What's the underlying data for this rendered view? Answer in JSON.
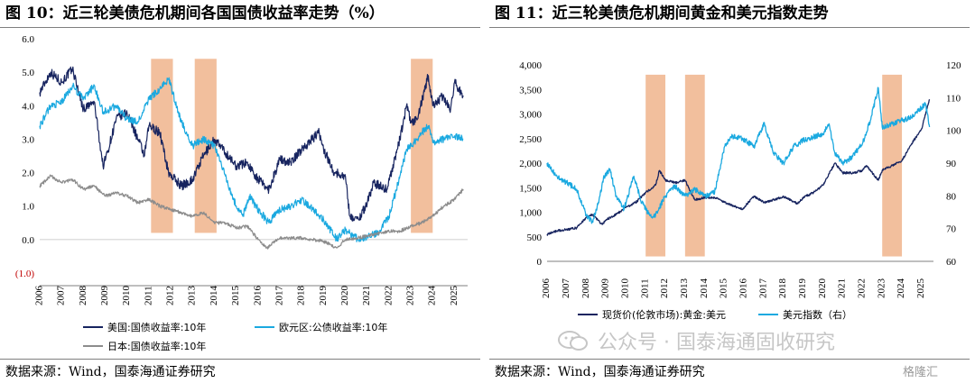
{
  "left": {
    "title": "图 10：近三轮美债危机期间各国国债收益率走势（%）",
    "source": "数据来源：Wind，国泰海通证券研究",
    "legend": [
      "美国:国债收益率:10年",
      "欧元区:公债收益率:10年",
      "日本:国债收益率:10年"
    ]
  },
  "right": {
    "title": "图 11：近三轮美债危机期间黄金和美元指数走势",
    "source": "数据来源：Wind，国泰海通证券研究",
    "legend": [
      "现货价(伦敦市场):黄金:美元",
      "美元指数（右）"
    ]
  },
  "watermark": {
    "text": "公众号 · 国泰海通固收研究"
  },
  "corner_logo": "格隆汇",
  "colors": {
    "us": "#17245f",
    "euro": "#1ba9e0",
    "japan": "#8c8c8c",
    "gold": "#17245f",
    "dxy": "#1ba9e0",
    "shade": "#f0b48c",
    "grid": "#d9d9d9"
  },
  "chart_data": [
    {
      "type": "line",
      "title": "",
      "xlabel": "",
      "ylabel": "",
      "ylim": [
        -1.0,
        6.0
      ],
      "xlim": [
        2006,
        2025.6
      ],
      "yticks": [
        -1.0,
        0.0,
        1.0,
        2.0,
        3.0,
        4.0,
        5.0,
        6.0
      ],
      "ytick_labels": [
        "(1.0)",
        "0.0",
        "1.0",
        "2.0",
        "3.0",
        "4.0",
        "5.0",
        "6.0"
      ],
      "xticks": [
        2006,
        2007,
        2008,
        2009,
        2010,
        2011,
        2012,
        2013,
        2014,
        2015,
        2016,
        2017,
        2018,
        2019,
        2020,
        2021,
        2022,
        2023,
        2024,
        2025
      ],
      "xtick_labels": [
        "2006",
        "2007",
        "2008",
        "2009",
        "2010",
        "2011",
        "2012",
        "2013",
        "2014",
        "2015",
        "2016",
        "2017",
        "2018",
        "2019",
        "2020",
        "2021",
        "2022",
        "2023",
        "2024",
        "2025"
      ],
      "shaded_ranges": [
        [
          2011.1,
          2012.1
        ],
        [
          2013.1,
          2014.1
        ],
        [
          2023.0,
          2024.0
        ]
      ],
      "legend_position": "bottom",
      "series": [
        {
          "name": "美国:国债收益率:10年",
          "x": [
            2006,
            2006.5,
            2007,
            2007.5,
            2008,
            2008.5,
            2008.9,
            2009.1,
            2009.5,
            2010,
            2010.5,
            2010.8,
            2011,
            2011.5,
            2011.9,
            2012.5,
            2013,
            2013.5,
            2014,
            2014.5,
            2015,
            2015.5,
            2016,
            2016.5,
            2017,
            2017.5,
            2018,
            2018.8,
            2019,
            2019.5,
            2020,
            2020.2,
            2020.6,
            2021,
            2021.3,
            2021.9,
            2022.5,
            2022.8,
            2023,
            2023.3,
            2023.8,
            2024,
            2024.5,
            2024.8,
            2025,
            2025.4
          ],
          "y": [
            4.4,
            5.0,
            4.7,
            5.1,
            3.9,
            4.1,
            2.2,
            2.6,
            3.6,
            3.8,
            3.0,
            2.5,
            3.4,
            3.2,
            2.0,
            1.6,
            1.8,
            2.5,
            3.0,
            2.6,
            2.2,
            2.3,
            1.8,
            1.5,
            2.4,
            2.3,
            2.7,
            3.2,
            2.7,
            2.0,
            1.9,
            0.7,
            0.6,
            1.1,
            1.7,
            1.5,
            3.0,
            4.0,
            3.5,
            3.6,
            4.9,
            4.0,
            4.3,
            3.8,
            4.7,
            4.3
          ]
        },
        {
          "name": "欧元区:公债收益率:10年",
          "x": [
            2006,
            2006.5,
            2007,
            2007.5,
            2008,
            2008.5,
            2008.9,
            2009.5,
            2010,
            2010.5,
            2011,
            2011.5,
            2011.9,
            2012.5,
            2013,
            2013.5,
            2014,
            2014.5,
            2015,
            2015.3,
            2015.6,
            2016,
            2016.5,
            2017,
            2017.5,
            2018,
            2018.5,
            2019,
            2019.6,
            2020,
            2020.2,
            2020.6,
            2021,
            2021.5,
            2022,
            2022.5,
            2022.8,
            2023,
            2023.5,
            2023.8,
            2024,
            2024.5,
            2025,
            2025.4
          ],
          "y": [
            3.4,
            4.0,
            4.1,
            4.6,
            4.2,
            4.6,
            3.8,
            4.0,
            3.6,
            3.5,
            4.2,
            4.5,
            4.8,
            3.5,
            2.8,
            3.0,
            2.8,
            1.9,
            1.0,
            0.7,
            1.3,
            0.9,
            0.5,
            0.9,
            1.0,
            1.2,
            0.9,
            0.6,
            0.0,
            0.3,
            0.2,
            0.0,
            0.1,
            0.2,
            0.7,
            1.9,
            2.7,
            2.8,
            3.2,
            3.4,
            2.9,
            3.0,
            3.1,
            3.0
          ]
        },
        {
          "name": "日本:国债收益率:10年",
          "x": [
            2006,
            2006.5,
            2007,
            2007.5,
            2008,
            2008.5,
            2009,
            2009.5,
            2010,
            2010.5,
            2011,
            2011.5,
            2012,
            2012.5,
            2013,
            2013.5,
            2014,
            2014.5,
            2015,
            2015.5,
            2016,
            2016.4,
            2016.8,
            2017,
            2018,
            2019,
            2019.6,
            2020,
            2021,
            2022,
            2022.5,
            2023,
            2023.5,
            2024,
            2024.5,
            2025,
            2025.4
          ],
          "y": [
            1.6,
            1.9,
            1.7,
            1.8,
            1.5,
            1.6,
            1.3,
            1.4,
            1.3,
            1.1,
            1.2,
            1.0,
            0.9,
            0.8,
            0.7,
            0.8,
            0.5,
            0.5,
            0.35,
            0.4,
            0.0,
            -0.25,
            -0.05,
            0.05,
            0.05,
            -0.05,
            -0.25,
            0.0,
            0.1,
            0.25,
            0.25,
            0.4,
            0.5,
            0.7,
            1.0,
            1.2,
            1.5
          ]
        }
      ]
    },
    {
      "type": "line",
      "title": "",
      "xlabel": "",
      "ylabel": "",
      "ylim": [
        0,
        4000
      ],
      "y2lim": [
        60,
        120
      ],
      "xlim": [
        2006,
        2025.6
      ],
      "yticks": [
        0,
        500,
        1000,
        1500,
        2000,
        2500,
        3000,
        3500,
        4000
      ],
      "ytick_labels": [
        "0",
        "500",
        "1,000",
        "1,500",
        "2,000",
        "2,500",
        "3,000",
        "3,500",
        "4,000"
      ],
      "y2ticks": [
        60,
        70,
        80,
        90,
        100,
        110,
        120
      ],
      "y2tick_labels": [
        "60",
        "70",
        "80",
        "90",
        "100",
        "110",
        "120"
      ],
      "xticks": [
        2006,
        2007,
        2008,
        2009,
        2010,
        2011,
        2012,
        2013,
        2014,
        2015,
        2016,
        2017,
        2018,
        2019,
        2020,
        2021,
        2022,
        2023,
        2024,
        2025
      ],
      "xtick_labels": [
        "2006",
        "2007",
        "2008",
        "2009",
        "2010",
        "2011",
        "2012",
        "2013",
        "2014",
        "2015",
        "2016",
        "2017",
        "2018",
        "2019",
        "2020",
        "2021",
        "2022",
        "2023",
        "2024",
        "2025"
      ],
      "shaded_ranges": [
        [
          2011.0,
          2012.0
        ],
        [
          2013.0,
          2014.0
        ],
        [
          2023.0,
          2024.0
        ]
      ],
      "legend_position": "bottom",
      "series": [
        {
          "name": "现货价(伦敦市场):黄金:美元",
          "axis": "left",
          "x": [
            2006,
            2006.5,
            2007,
            2007.5,
            2008,
            2008.3,
            2008.8,
            2009,
            2009.5,
            2010,
            2010.5,
            2011,
            2011.5,
            2011.7,
            2012,
            2012.5,
            2013,
            2013.3,
            2013.5,
            2014,
            2014.5,
            2015,
            2015.9,
            2016.5,
            2017,
            2017.5,
            2018,
            2018.7,
            2019,
            2019.5,
            2020,
            2020.6,
            2021,
            2021.5,
            2022,
            2022.2,
            2022.8,
            2023,
            2023.5,
            2024,
            2024.5,
            2025,
            2025.4
          ],
          "y": [
            550,
            620,
            650,
            680,
            900,
            950,
            750,
            850,
            950,
            1100,
            1200,
            1400,
            1550,
            1850,
            1650,
            1600,
            1650,
            1400,
            1250,
            1300,
            1300,
            1200,
            1060,
            1330,
            1200,
            1250,
            1320,
            1180,
            1300,
            1400,
            1550,
            2000,
            1800,
            1800,
            1850,
            1950,
            1650,
            1850,
            1950,
            2050,
            2400,
            2700,
            3300
          ]
        },
        {
          "name": "美元指数（右）",
          "axis": "right",
          "x": [
            2006,
            2006.5,
            2007,
            2007.5,
            2008,
            2008.3,
            2008.6,
            2008.9,
            2009.2,
            2009.5,
            2009.9,
            2010.4,
            2010.8,
            2011.2,
            2011.5,
            2012,
            2012.5,
            2013,
            2013.5,
            2014,
            2014.5,
            2015,
            2015.3,
            2015.8,
            2016.5,
            2017,
            2017.5,
            2018,
            2018.5,
            2019,
            2019.5,
            2020,
            2020.3,
            2020.6,
            2021,
            2021.5,
            2022,
            2022.4,
            2022.8,
            2023,
            2023.5,
            2024,
            2024.5,
            2025,
            2025.2,
            2025.4
          ],
          "y": [
            90,
            86,
            84,
            82,
            74,
            72,
            78,
            86,
            88,
            80,
            76,
            86,
            78,
            74,
            74,
            80,
            83,
            80,
            82,
            80,
            81,
            95,
            98,
            98,
            95,
            102,
            93,
            90,
            95,
            97,
            98,
            99,
            102,
            93,
            90,
            92,
            96,
            103,
            113,
            101,
            102,
            103,
            104,
            107,
            108,
            101
          ]
        }
      ]
    }
  ]
}
